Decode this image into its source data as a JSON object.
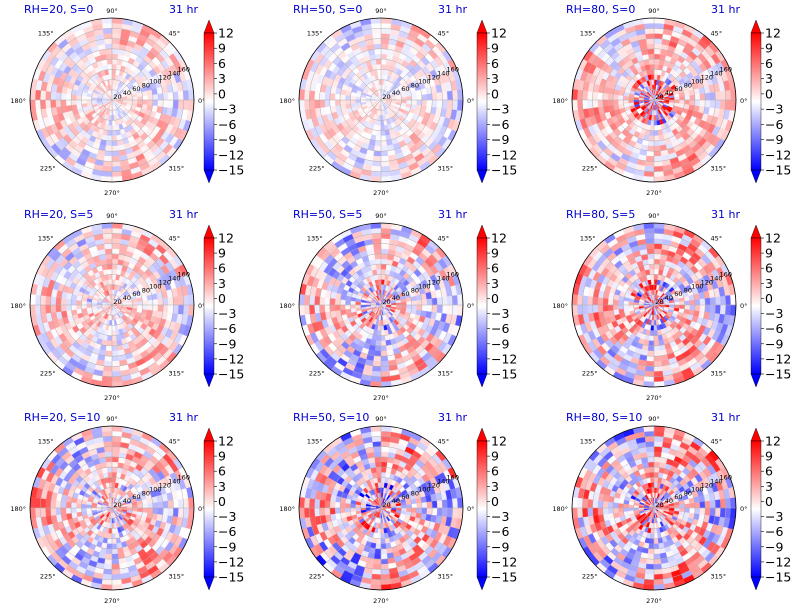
{
  "figure": {
    "colormap": {
      "low": "#0000ff",
      "mid": "#ffffff",
      "high": "#ff0000"
    },
    "colorbar_ticks": [
      "12",
      "9",
      "6",
      "3",
      "0",
      "−3",
      "−6",
      "−9",
      "−12",
      "−15"
    ],
    "vmin": -15,
    "vmax": 12,
    "angle_labels": [
      "90°",
      "45°",
      "0°",
      "315°",
      "270°",
      "225°",
      "180°",
      "135°"
    ],
    "radial_labels": [
      "20",
      "40",
      "60",
      "80",
      "100",
      "120",
      "140",
      "160"
    ],
    "title_color": "#0000cc"
  },
  "chart_data": [
    {
      "type": "heatmap",
      "projection": "polar",
      "title": "RH=20, S=0",
      "time_label": "31 hr",
      "rlim": [
        0,
        160
      ],
      "color_range": [
        -15,
        12
      ],
      "pattern": {
        "amplitude": 0.4,
        "core": 0.0,
        "bias": 0.05,
        "seed": 11
      }
    },
    {
      "type": "heatmap",
      "projection": "polar",
      "title": "RH=50, S=0",
      "time_label": "31 hr",
      "rlim": [
        0,
        160
      ],
      "color_range": [
        -15,
        12
      ],
      "pattern": {
        "amplitude": 0.35,
        "core": 0.0,
        "bias": 0.02,
        "seed": 23
      }
    },
    {
      "type": "heatmap",
      "projection": "polar",
      "title": "RH=80, S=0",
      "time_label": "31 hr",
      "rlim": [
        0,
        160
      ],
      "color_range": [
        -15,
        12
      ],
      "pattern": {
        "amplitude": 0.45,
        "core": 1.0,
        "bias": 0.15,
        "seed": 37
      }
    },
    {
      "type": "heatmap",
      "projection": "polar",
      "title": "RH=20, S=5",
      "time_label": "31 hr",
      "rlim": [
        0,
        160
      ],
      "color_range": [
        -15,
        12
      ],
      "pattern": {
        "amplitude": 0.45,
        "core": 0.2,
        "bias": 0.08,
        "seed": 41
      }
    },
    {
      "type": "heatmap",
      "projection": "polar",
      "title": "RH=50, S=5",
      "time_label": "31 hr",
      "rlim": [
        0,
        160
      ],
      "color_range": [
        -15,
        12
      ],
      "pattern": {
        "amplitude": 0.6,
        "core": 0.6,
        "bias": 0.0,
        "seed": 53
      }
    },
    {
      "type": "heatmap",
      "projection": "polar",
      "title": "RH=80, S=5",
      "time_label": "31 hr",
      "rlim": [
        0,
        160
      ],
      "color_range": [
        -15,
        12
      ],
      "pattern": {
        "amplitude": 0.6,
        "core": 0.9,
        "bias": 0.1,
        "seed": 67
      }
    },
    {
      "type": "heatmap",
      "projection": "polar",
      "title": "RH=20, S=10",
      "time_label": "31 hr",
      "rlim": [
        0,
        160
      ],
      "color_range": [
        -15,
        12
      ],
      "pattern": {
        "amplitude": 0.6,
        "core": 0.5,
        "bias": 0.05,
        "seed": 71
      }
    },
    {
      "type": "heatmap",
      "projection": "polar",
      "title": "RH=50, S=10",
      "time_label": "31 hr",
      "rlim": [
        0,
        160
      ],
      "color_range": [
        -15,
        12
      ],
      "pattern": {
        "amplitude": 0.75,
        "core": 0.9,
        "bias": 0.0,
        "seed": 83
      }
    },
    {
      "type": "heatmap",
      "projection": "polar",
      "title": "RH=80, S=10",
      "time_label": "31 hr",
      "rlim": [
        0,
        160
      ],
      "color_range": [
        -15,
        12
      ],
      "pattern": {
        "amplitude": 0.75,
        "core": 0.8,
        "bias": 0.05,
        "seed": 97
      }
    }
  ]
}
